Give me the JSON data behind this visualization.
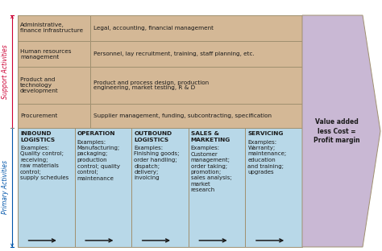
{
  "support_bg": "#D4B896",
  "primary_bg": "#B8D8E8",
  "profit_bg": "#C9B8D4",
  "border_color": "#A09070",
  "text_color": "#1a1a1a",
  "arrow_color": "#1a1a1a",
  "support_label_color": "#CC0033",
  "primary_label_color": "#0055AA",
  "support_activities": [
    {
      "title": "Administrative,\nfinance infrastructure",
      "content": "Legal, accounting, financial management"
    },
    {
      "title": "Human resources\nmanagement",
      "content": "Personnel, lay recruitment, training, staff planning, etc."
    },
    {
      "title": "Product and\ntechnology\ndevelopment",
      "content": "Product and process design, production\nengineering, market testing, R & D"
    },
    {
      "title": "Procurement",
      "content": "Supplier management, funding, subcontracting, specification"
    }
  ],
  "primary_activities": [
    {
      "title": "INBOUND\nLOGISTICS",
      "content": "Examples:\nQuality control;\nreceiving;\nraw materials\ncontrol;\nsupply schedules"
    },
    {
      "title": "OPERATION",
      "content": "Examples:\nManufacturing;\npackaging;\nproduction\ncontrol; quality\ncontrol;\nmaintenance"
    },
    {
      "title": "OUTBOUND\nLOGISTICS",
      "content": "Examples:\nFinishing goods;\norder handling;\ndispatch;\ndelivery;\ninvoicing"
    },
    {
      "title": "SALES &\nMARKETING",
      "content": "Examples:\nCustomer\nmanagement;\norder taking;\npromotion;\nsales analysis;\nmarket\nresearch"
    },
    {
      "title": "SERVICING",
      "content": "Examples:\nWarranty;\nmaintenance;\neducation\nand training;\nupgrades"
    }
  ],
  "profit_text": "Value added\nless Cost =\nProfit margin",
  "support_label": "Support Activities",
  "primary_label": "Primary Activities",
  "fig_w": 4.74,
  "fig_h": 3.12,
  "dpi": 100
}
